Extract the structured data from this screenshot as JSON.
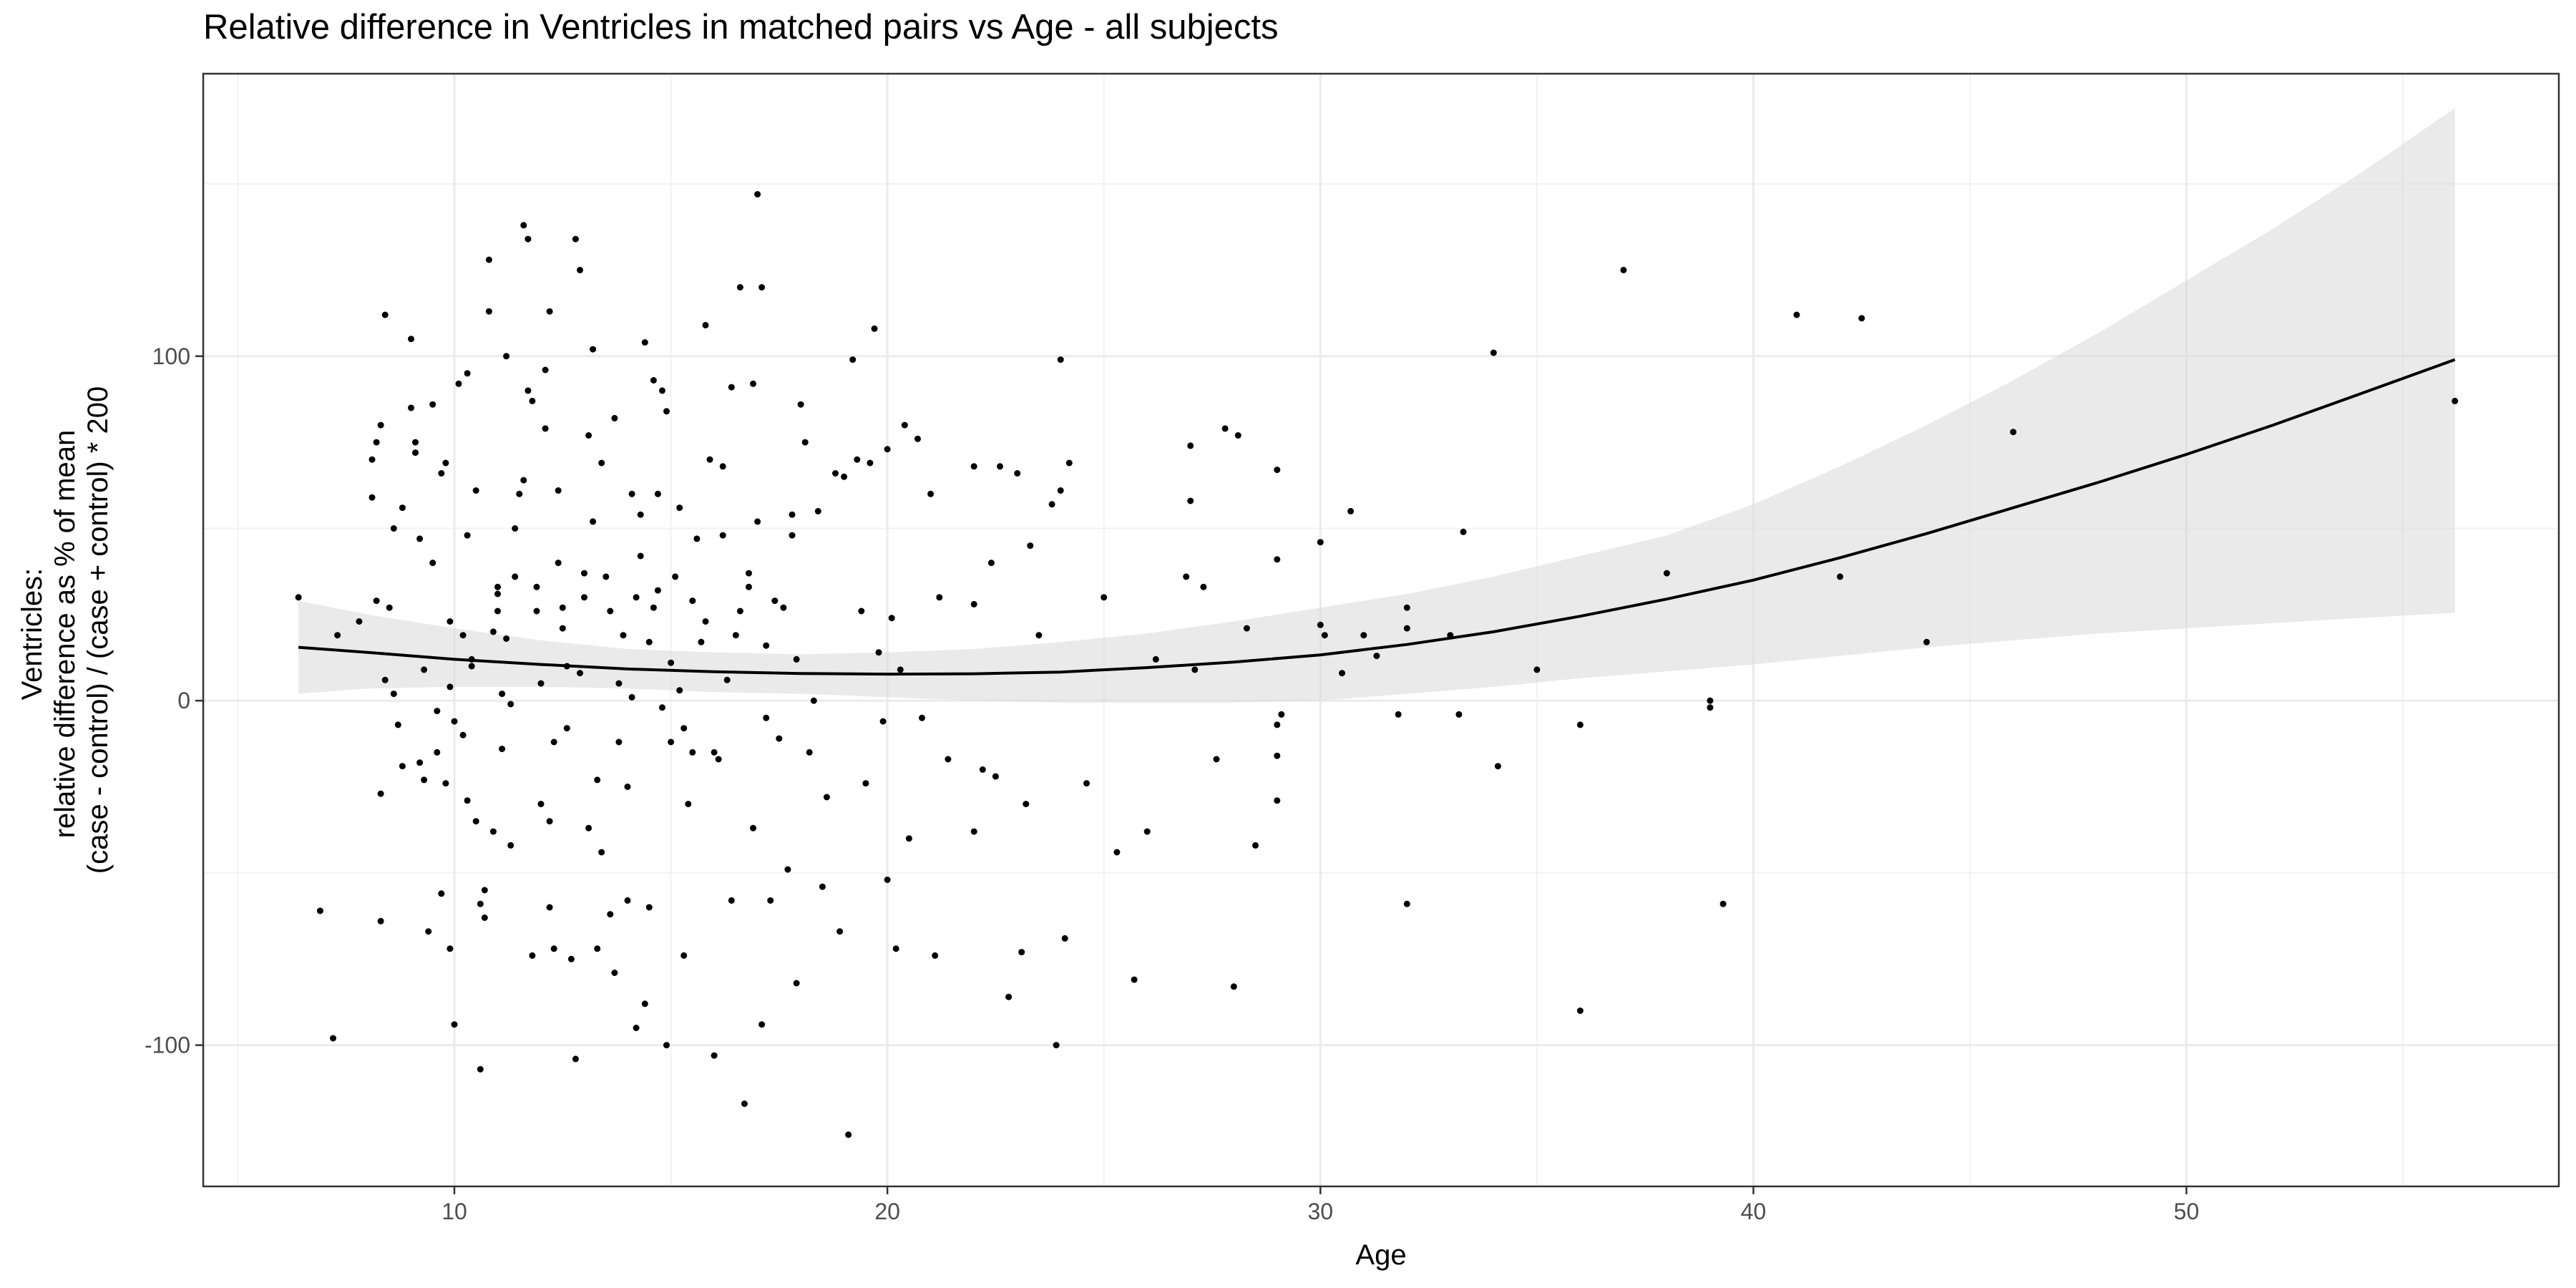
{
  "chart_data": {
    "type": "scatter",
    "title": "Relative difference in Ventricles in matched pairs vs Age - all subjects",
    "xlabel": "Age",
    "ylabel_lines": [
      "Ventricles:",
      "relative difference as % of mean",
      "(case - control) / (case + control) * 200"
    ],
    "xlim": [
      4.2,
      58.6
    ],
    "ylim": [
      -141,
      182
    ],
    "x_ticks": [
      10,
      20,
      30,
      40,
      50
    ],
    "x_tick_labels": [
      "10",
      "20",
      "30",
      "40",
      "50"
    ],
    "y_ticks": [
      -100,
      0,
      100
    ],
    "y_tick_labels": [
      "-100",
      "0",
      "100"
    ],
    "grid": true,
    "theme": "bw",
    "point_color": "#000000",
    "smooth_color": "#000000",
    "band_color": "#d9d9d9",
    "smooth": {
      "x": [
        6.4,
        8,
        10,
        12,
        14,
        16,
        18,
        20,
        22,
        24,
        26,
        28,
        30,
        32,
        34,
        36,
        38,
        40,
        42,
        44,
        46,
        48,
        50,
        52,
        54,
        56.2
      ],
      "y": [
        15.5,
        14,
        12,
        10.5,
        9.2,
        8.4,
        7.9,
        7.7,
        7.8,
        8.3,
        9.6,
        11.2,
        13.3,
        16.3,
        20,
        24.5,
        29.5,
        35,
        41.5,
        48.5,
        56,
        63.5,
        71.5,
        80,
        89,
        99
      ],
      "lower": [
        2,
        3.5,
        4,
        4,
        3.5,
        2.5,
        2,
        1,
        0,
        -0.5,
        -0.5,
        -0.5,
        0,
        2,
        4,
        6.5,
        8.5,
        10.5,
        13,
        15.5,
        17.5,
        19.5,
        21,
        22.5,
        24,
        25.5
      ],
      "upper": [
        29,
        25,
        21,
        17.5,
        15,
        14,
        13.5,
        14,
        15,
        17,
        19.5,
        23,
        27,
        31,
        36,
        42,
        48,
        57,
        68,
        80,
        93,
        107,
        122,
        137,
        153,
        172
      ]
    },
    "points": [
      [
        6.4,
        30
      ],
      [
        6.9,
        -61
      ],
      [
        7.2,
        -98
      ],
      [
        7.3,
        19
      ],
      [
        7.8,
        23
      ],
      [
        8.1,
        59
      ],
      [
        8.1,
        70
      ],
      [
        8.2,
        75
      ],
      [
        8.3,
        80
      ],
      [
        8.4,
        112
      ],
      [
        8.2,
        29
      ],
      [
        8.3,
        -27
      ],
      [
        8.3,
        -64
      ],
      [
        8.4,
        6
      ],
      [
        8.5,
        27
      ],
      [
        8.6,
        2
      ],
      [
        8.6,
        50
      ],
      [
        8.7,
        -7
      ],
      [
        8.8,
        -19
      ],
      [
        8.8,
        56
      ],
      [
        9.0,
        85
      ],
      [
        9.0,
        105
      ],
      [
        9.1,
        75
      ],
      [
        9.1,
        72
      ],
      [
        9.2,
        47
      ],
      [
        9.2,
        -18
      ],
      [
        9.3,
        -23
      ],
      [
        9.3,
        9
      ],
      [
        9.4,
        -67
      ],
      [
        9.5,
        86
      ],
      [
        9.5,
        40
      ],
      [
        9.6,
        -15
      ],
      [
        9.6,
        -3
      ],
      [
        9.7,
        -56
      ],
      [
        9.7,
        66
      ],
      [
        9.8,
        69
      ],
      [
        9.8,
        -24
      ],
      [
        9.9,
        -72
      ],
      [
        9.9,
        4
      ],
      [
        10.0,
        -94
      ],
      [
        9.9,
        23
      ],
      [
        10.0,
        -6
      ],
      [
        10.1,
        92
      ],
      [
        10.2,
        19
      ],
      [
        10.2,
        -10
      ],
      [
        10.3,
        95
      ],
      [
        10.3,
        48
      ],
      [
        10.3,
        -29
      ],
      [
        10.4,
        10
      ],
      [
        10.4,
        12
      ],
      [
        10.5,
        -35
      ],
      [
        10.5,
        61
      ],
      [
        10.6,
        -107
      ],
      [
        10.6,
        -59
      ],
      [
        10.7,
        -55
      ],
      [
        10.7,
        -63
      ],
      [
        10.8,
        113
      ],
      [
        10.8,
        128
      ],
      [
        10.9,
        20
      ],
      [
        10.9,
        -38
      ],
      [
        11.0,
        33
      ],
      [
        11.0,
        31
      ],
      [
        11.0,
        26
      ],
      [
        11.1,
        2
      ],
      [
        11.1,
        -14
      ],
      [
        11.2,
        100
      ],
      [
        11.2,
        18
      ],
      [
        11.3,
        -1
      ],
      [
        11.3,
        -42
      ],
      [
        11.4,
        50
      ],
      [
        11.4,
        36
      ],
      [
        11.5,
        60
      ],
      [
        11.6,
        64
      ],
      [
        11.6,
        138
      ],
      [
        11.7,
        134
      ],
      [
        11.7,
        90
      ],
      [
        11.8,
        87
      ],
      [
        11.8,
        -74
      ],
      [
        11.9,
        33
      ],
      [
        11.9,
        26
      ],
      [
        12.0,
        -30
      ],
      [
        12.0,
        5
      ],
      [
        12.1,
        96
      ],
      [
        12.1,
        79
      ],
      [
        12.2,
        113
      ],
      [
        12.2,
        -35
      ],
      [
        12.2,
        -60
      ],
      [
        12.3,
        -72
      ],
      [
        12.3,
        -12
      ],
      [
        12.4,
        61
      ],
      [
        12.4,
        40
      ],
      [
        12.5,
        27
      ],
      [
        12.5,
        21
      ],
      [
        12.6,
        10
      ],
      [
        12.6,
        -8
      ],
      [
        12.7,
        -75
      ],
      [
        12.8,
        -104
      ],
      [
        12.8,
        134
      ],
      [
        12.9,
        125
      ],
      [
        12.9,
        8
      ],
      [
        13.0,
        37
      ],
      [
        13.0,
        30
      ],
      [
        13.1,
        -37
      ],
      [
        13.1,
        77
      ],
      [
        13.2,
        52
      ],
      [
        13.2,
        102
      ],
      [
        13.3,
        -23
      ],
      [
        13.3,
        -72
      ],
      [
        13.4,
        69
      ],
      [
        13.4,
        -44
      ],
      [
        13.5,
        36
      ],
      [
        13.6,
        26
      ],
      [
        13.6,
        -62
      ],
      [
        13.7,
        -79
      ],
      [
        13.7,
        82
      ],
      [
        13.8,
        5
      ],
      [
        13.8,
        -12
      ],
      [
        13.9,
        19
      ],
      [
        14.0,
        -25
      ],
      [
        14.0,
        -58
      ],
      [
        14.1,
        60
      ],
      [
        14.1,
        1
      ],
      [
        14.2,
        30
      ],
      [
        14.2,
        -95
      ],
      [
        14.3,
        54
      ],
      [
        14.3,
        42
      ],
      [
        14.4,
        104
      ],
      [
        14.4,
        -88
      ],
      [
        14.5,
        -60
      ],
      [
        14.5,
        17
      ],
      [
        14.6,
        27
      ],
      [
        14.6,
        93
      ],
      [
        14.7,
        60
      ],
      [
        14.7,
        32
      ],
      [
        14.8,
        90
      ],
      [
        14.8,
        -2
      ],
      [
        14.9,
        84
      ],
      [
        14.9,
        -100
      ],
      [
        15.0,
        -12
      ],
      [
        15.0,
        11
      ],
      [
        15.1,
        36
      ],
      [
        15.2,
        56
      ],
      [
        15.2,
        3
      ],
      [
        15.3,
        -8
      ],
      [
        15.3,
        -74
      ],
      [
        15.4,
        -30
      ],
      [
        15.5,
        29
      ],
      [
        15.5,
        -15
      ],
      [
        15.6,
        47
      ],
      [
        15.7,
        17
      ],
      [
        15.8,
        109
      ],
      [
        15.8,
        23
      ],
      [
        15.9,
        70
      ],
      [
        16.0,
        -103
      ],
      [
        16.0,
        -15
      ],
      [
        16.1,
        -17
      ],
      [
        16.2,
        68
      ],
      [
        16.2,
        48
      ],
      [
        16.3,
        6
      ],
      [
        16.4,
        91
      ],
      [
        16.4,
        -58
      ],
      [
        16.5,
        19
      ],
      [
        16.6,
        26
      ],
      [
        16.6,
        120
      ],
      [
        16.7,
        -117
      ],
      [
        16.8,
        37
      ],
      [
        16.8,
        33
      ],
      [
        16.9,
        92
      ],
      [
        16.9,
        -37
      ],
      [
        17.0,
        147
      ],
      [
        17.0,
        52
      ],
      [
        17.1,
        -94
      ],
      [
        17.1,
        120
      ],
      [
        17.2,
        16
      ],
      [
        17.2,
        -5
      ],
      [
        17.3,
        -58
      ],
      [
        17.4,
        29
      ],
      [
        17.5,
        -11
      ],
      [
        17.6,
        27
      ],
      [
        17.7,
        -49
      ],
      [
        17.8,
        54
      ],
      [
        17.8,
        48
      ],
      [
        17.9,
        -82
      ],
      [
        17.9,
        12
      ],
      [
        18.0,
        86
      ],
      [
        18.1,
        75
      ],
      [
        18.2,
        -15
      ],
      [
        18.3,
        0
      ],
      [
        18.4,
        55
      ],
      [
        18.5,
        -54
      ],
      [
        18.6,
        -28
      ],
      [
        18.8,
        66
      ],
      [
        18.9,
        -67
      ],
      [
        19.0,
        65
      ],
      [
        19.1,
        -126
      ],
      [
        19.2,
        99
      ],
      [
        19.3,
        70
      ],
      [
        19.4,
        26
      ],
      [
        19.5,
        -24
      ],
      [
        19.6,
        69
      ],
      [
        19.7,
        108
      ],
      [
        19.8,
        14
      ],
      [
        19.9,
        -6
      ],
      [
        20.0,
        73
      ],
      [
        20.0,
        -52
      ],
      [
        20.1,
        24
      ],
      [
        20.2,
        -72
      ],
      [
        20.3,
        9
      ],
      [
        20.4,
        80
      ],
      [
        20.5,
        -40
      ],
      [
        20.7,
        76
      ],
      [
        20.8,
        -5
      ],
      [
        21.0,
        60
      ],
      [
        21.1,
        -74
      ],
      [
        21.2,
        30
      ],
      [
        21.4,
        -17
      ],
      [
        22.0,
        68
      ],
      [
        22.0,
        -38
      ],
      [
        22.0,
        28
      ],
      [
        22.2,
        -20
      ],
      [
        22.4,
        40
      ],
      [
        22.5,
        -22
      ],
      [
        22.6,
        68
      ],
      [
        22.8,
        -86
      ],
      [
        23.0,
        66
      ],
      [
        23.1,
        -73
      ],
      [
        23.2,
        -30
      ],
      [
        23.3,
        45
      ],
      [
        23.5,
        19
      ],
      [
        23.8,
        57
      ],
      [
        23.9,
        -100
      ],
      [
        24.0,
        61
      ],
      [
        24.0,
        99
      ],
      [
        24.1,
        -69
      ],
      [
        24.2,
        69
      ],
      [
        24.6,
        -24
      ],
      [
        25.0,
        30
      ],
      [
        25.3,
        -44
      ],
      [
        25.7,
        -81
      ],
      [
        26.0,
        -38
      ],
      [
        26.2,
        12
      ],
      [
        26.9,
        36
      ],
      [
        27.0,
        74
      ],
      [
        27.0,
        58
      ],
      [
        27.1,
        9
      ],
      [
        27.3,
        33
      ],
      [
        27.6,
        -17
      ],
      [
        27.8,
        79
      ],
      [
        28.0,
        -83
      ],
      [
        28.1,
        77
      ],
      [
        28.3,
        21
      ],
      [
        28.5,
        -42
      ],
      [
        29.0,
        67
      ],
      [
        29.0,
        41
      ],
      [
        29.0,
        -29
      ],
      [
        29.0,
        -16
      ],
      [
        29.0,
        -7
      ],
      [
        29.1,
        -4
      ],
      [
        30.0,
        46
      ],
      [
        30.0,
        22
      ],
      [
        30.1,
        19
      ],
      [
        30.5,
        8
      ],
      [
        30.7,
        55
      ],
      [
        31.0,
        19
      ],
      [
        31.3,
        13
      ],
      [
        31.8,
        -4
      ],
      [
        32.0,
        -59
      ],
      [
        32.0,
        21
      ],
      [
        32.0,
        27
      ],
      [
        33.0,
        19
      ],
      [
        33.2,
        -4
      ],
      [
        33.3,
        49
      ],
      [
        34.0,
        101
      ],
      [
        34.1,
        -19
      ],
      [
        35.0,
        9
      ],
      [
        36.0,
        -90
      ],
      [
        36.0,
        -7
      ],
      [
        37.0,
        125
      ],
      [
        38.0,
        37
      ],
      [
        39.0,
        0
      ],
      [
        39.0,
        -2
      ],
      [
        39.3,
        -59
      ],
      [
        41.0,
        112
      ],
      [
        42.0,
        36
      ],
      [
        42.5,
        111
      ],
      [
        44.0,
        17
      ],
      [
        46.0,
        78
      ],
      [
        56.2,
        87
      ]
    ]
  }
}
